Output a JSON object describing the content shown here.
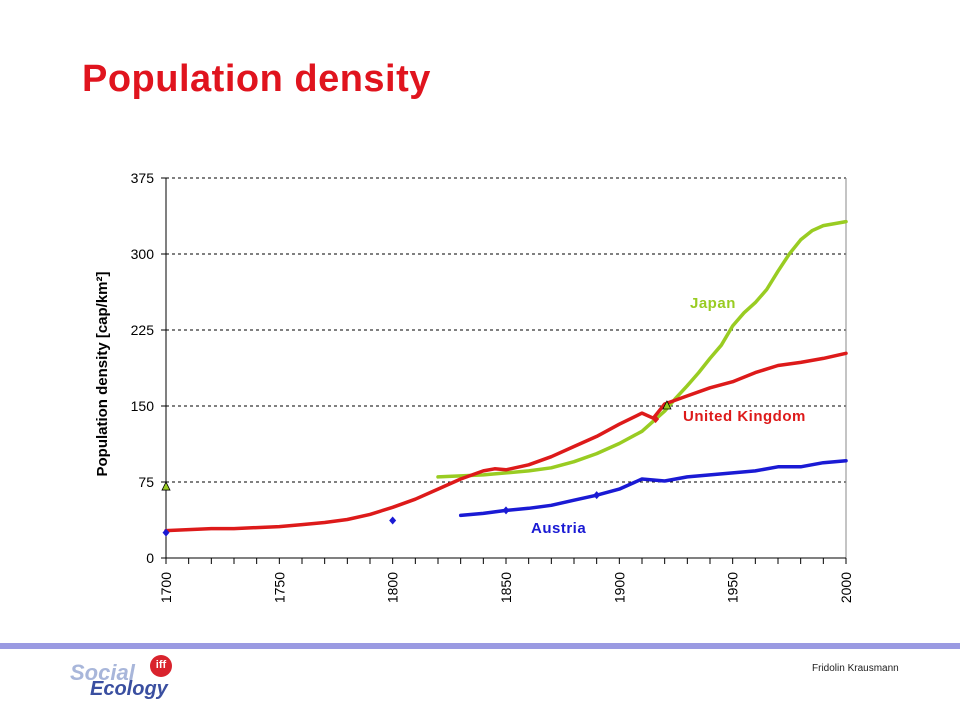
{
  "slide": {
    "title": "Population density",
    "author": "Fridolin Krausmann",
    "logo": {
      "word1": "Social",
      "word2": "Ecology",
      "badge": "iff"
    }
  },
  "colors": {
    "title": "#e0141e",
    "japan": "#99cc22",
    "uk": "#dd1a1a",
    "austria": "#1a1ad4",
    "rule": "#9a9ae2"
  },
  "chart_data": {
    "type": "line",
    "title": "",
    "xlabel": "",
    "ylabel": "Population density [cap/km²]",
    "xlim": [
      1700,
      2000
    ],
    "ylim": [
      0,
      375
    ],
    "yticks": [
      0,
      75,
      150,
      225,
      300,
      375
    ],
    "xticks": [
      1700,
      1750,
      1800,
      1850,
      1900,
      1950,
      2000
    ],
    "grid": "horizontal dashed",
    "legend": "direct labels on lines",
    "series": [
      {
        "name": "Japan",
        "color": "#99cc22",
        "x": [
          1820,
          1830,
          1840,
          1850,
          1860,
          1870,
          1880,
          1890,
          1900,
          1910,
          1920,
          1925,
          1930,
          1935,
          1940,
          1945,
          1950,
          1955,
          1960,
          1965,
          1970,
          1975,
          1980,
          1985,
          1990,
          1995,
          2000
        ],
        "y": [
          80,
          81,
          82,
          84,
          86,
          89,
          95,
          103,
          113,
          125,
          145,
          158,
          170,
          183,
          197,
          210,
          229,
          242,
          252,
          265,
          283,
          300,
          314,
          323,
          328,
          330,
          332
        ]
      },
      {
        "name": "United Kingdom",
        "color": "#dd1a1a",
        "x": [
          1700,
          1710,
          1720,
          1730,
          1740,
          1750,
          1760,
          1770,
          1780,
          1790,
          1800,
          1810,
          1820,
          1830,
          1840,
          1845,
          1850,
          1860,
          1870,
          1880,
          1890,
          1900,
          1910,
          1915,
          1920,
          1930,
          1940,
          1950,
          1960,
          1970,
          1980,
          1990,
          2000
        ],
        "y": [
          27,
          28,
          29,
          29,
          30,
          31,
          33,
          35,
          38,
          43,
          50,
          58,
          68,
          78,
          86,
          88,
          87,
          92,
          100,
          110,
          120,
          132,
          143,
          138,
          152,
          160,
          168,
          174,
          183,
          190,
          193,
          197,
          202
        ]
      },
      {
        "name": "Austria",
        "color": "#1a1ad4",
        "x": [
          1830,
          1840,
          1850,
          1860,
          1870,
          1880,
          1890,
          1900,
          1910,
          1920,
          1930,
          1940,
          1950,
          1960,
          1970,
          1980,
          1990,
          2000
        ],
        "y": [
          42,
          44,
          47,
          49,
          52,
          57,
          62,
          68,
          78,
          76,
          80,
          82,
          84,
          86,
          90,
          90,
          94,
          96
        ]
      }
    ],
    "markers": [
      {
        "series": "Japan",
        "shape": "triangle",
        "x": 1700,
        "y": 70
      },
      {
        "series": "Japan",
        "shape": "triangle",
        "x": 1921,
        "y": 150
      },
      {
        "series": "Austria",
        "shape": "diamond",
        "x": 1700,
        "y": 25
      },
      {
        "series": "Austria",
        "shape": "diamond",
        "x": 1800,
        "y": 37
      },
      {
        "series": "Austria",
        "shape": "diamond",
        "x": 1850,
        "y": 47
      },
      {
        "series": "Austria",
        "shape": "diamond",
        "x": 1890,
        "y": 62
      },
      {
        "series": "United Kingdom",
        "shape": "diamond",
        "x": 1916,
        "y": 137
      }
    ]
  }
}
